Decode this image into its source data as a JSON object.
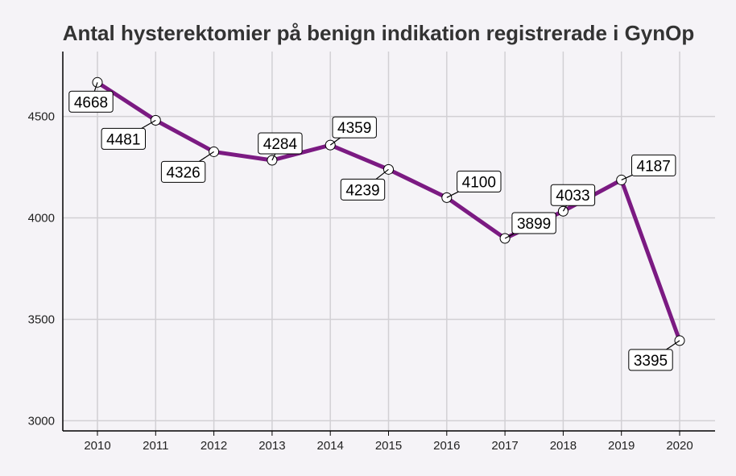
{
  "chart_data": {
    "type": "line",
    "title": "Antal hysterektomier på benign indikation registrerade i GynOp",
    "xlabel": "",
    "ylabel": "",
    "x": [
      "2010",
      "2011",
      "2012",
      "2013",
      "2014",
      "2015",
      "2016",
      "2017",
      "2018",
      "2019",
      "2020"
    ],
    "values": [
      4668,
      4481,
      4326,
      4284,
      4359,
      4239,
      4100,
      3899,
      4033,
      4187,
      3395
    ],
    "data_labels": [
      "4668",
      "4481",
      "4326",
      "4284",
      "4359",
      "4239",
      "4100",
      "3899",
      "4033",
      "4187",
      "3395"
    ],
    "yticks": [
      "3000",
      "3500",
      "4000",
      "4500"
    ],
    "ylim": [
      2950,
      4820
    ],
    "grid": true,
    "legend": "none"
  },
  "colors": {
    "background": "#f5f3f7",
    "line": "#7b1a82",
    "grid": "#d2d0d4",
    "axis": "#000000",
    "marker_fill": "#ffffff"
  }
}
